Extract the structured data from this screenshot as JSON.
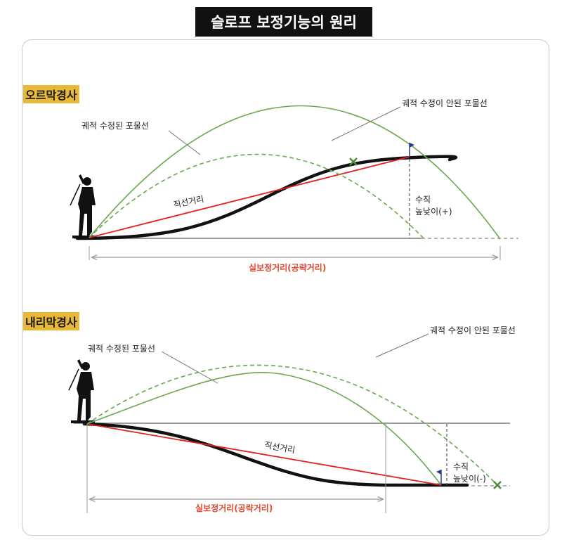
{
  "title": "슬로프 보정기능의 원리",
  "uphill": {
    "section_label": "오르막경사",
    "corrected_path_label": "궤적 수정된 포물선",
    "uncorrected_path_label": "궤적 수정이 안된 포물선",
    "straight_line_label": "직선거리",
    "vertical_label_line1": "수직",
    "vertical_label_line2": "높낮이(+)",
    "distance_label": "실보정거리(공략거리)"
  },
  "downhill": {
    "section_label": "내리막경사",
    "corrected_path_label": "궤적 수정된 포물선",
    "uncorrected_path_label": "궤적 수정이 안된 포물선",
    "straight_line_label": "직선거리",
    "vertical_label_line1": "수직",
    "vertical_label_line2": "높낮이(-)",
    "distance_label": "실보정거리(공략거리)"
  },
  "colors": {
    "green_path": "#6aa84f",
    "red_line": "#e02020",
    "terrain": "#111111",
    "guide": "#9a9a9a",
    "section_label_bg": "#e8b838",
    "flag": "#2a3a8c"
  }
}
